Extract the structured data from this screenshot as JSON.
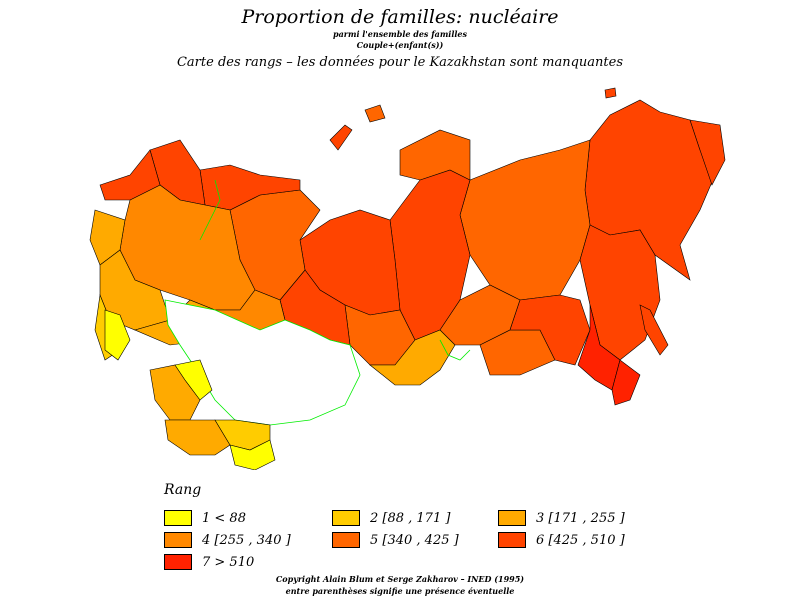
{
  "header": {
    "title": "Proportion de familles: nucléaire",
    "sub1": "parmi l'ensemble des familles",
    "sub2": "Couple+(enfant(s))",
    "subtitle": "Carte des rangs  –  les données pour le Kazakhstan sont manquantes"
  },
  "legend": {
    "title": "Rang",
    "items": [
      {
        "label": "1  <  88",
        "color": "#ffff00"
      },
      {
        "label": "2 [88 ,  171 ]",
        "color": "#ffcc00"
      },
      {
        "label": "3 [171 ,  255 ]",
        "color": "#ffaa00"
      },
      {
        "label": "4 [255 ,  340 ]",
        "color": "#ff8800"
      },
      {
        "label": "5 [340 ,  425 ]",
        "color": "#ff6600"
      },
      {
        "label": "6 [425 ,  510 ]",
        "color": "#ff4400"
      },
      {
        "label": "7  >  510",
        "color": "#ff2200"
      }
    ]
  },
  "footer": {
    "copyright": "Copyright Alain Blum et Serge Zakharov  –  INED (1995)",
    "note": "entre parenthèses signifie une présence éventuelle"
  },
  "colors": {
    "missing": "#ffffff",
    "missing_border": "#00ee00",
    "border": "#000000"
  }
}
